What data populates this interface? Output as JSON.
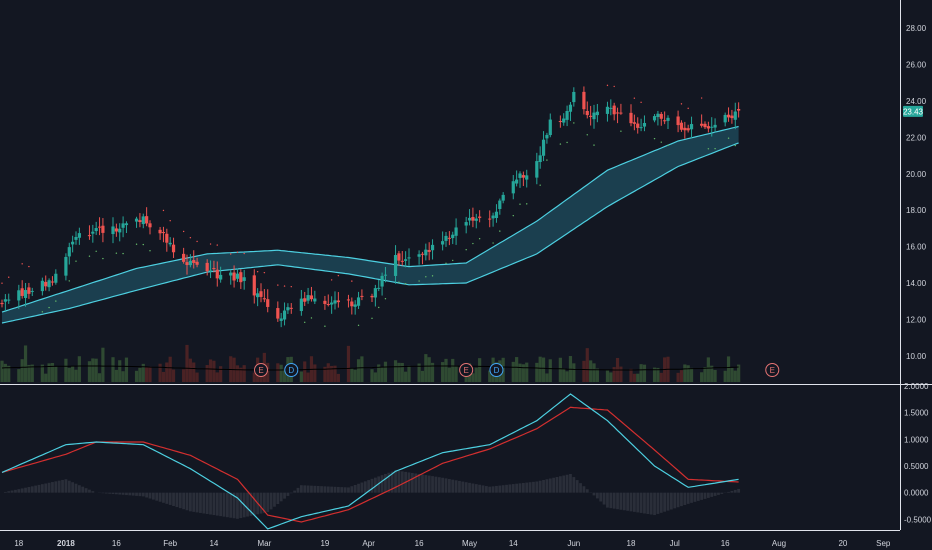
{
  "theme": {
    "background": "#131722",
    "axis_text": "#d1d4dc",
    "separator": "#e0e3eb",
    "up": "#26a69a",
    "down": "#ef5350",
    "ribbon": "#4dd0e1",
    "ribbon_fill": "#1f4e5f",
    "dots": "#66bb6a",
    "volume_up": "#2f4a32",
    "volume_down": "#4a2224",
    "volume_ma": "#000000",
    "macd": "#4dd0e1",
    "signal": "#d32f2f",
    "hist": "#2a2e39",
    "last_price_badge": "#26a69a",
    "event_earnings": "#e57373",
    "event_dividend": "#42a5f5"
  },
  "price_axis": {
    "ticks": [
      "28.00",
      "26.00",
      "24.00",
      "22.00",
      "20.00",
      "18.00",
      "16.00",
      "14.00",
      "12.00",
      "10.00"
    ],
    "last_price": "23.43",
    "range": [
      9,
      29
    ]
  },
  "oscillator_axis": {
    "ticks": [
      "2.0000",
      "1.5000",
      "1.0000",
      "0.5000",
      "0.0000",
      "-0.5000"
    ],
    "range": [
      -0.7,
      2.0
    ]
  },
  "time_axis": {
    "labels": [
      {
        "text": "18",
        "bold": false
      },
      {
        "text": "2018",
        "bold": true
      },
      {
        "text": "16",
        "bold": false
      },
      {
        "text": "Feb",
        "bold": false
      },
      {
        "text": "14",
        "bold": false
      },
      {
        "text": "Mar",
        "bold": false
      },
      {
        "text": "19",
        "bold": false
      },
      {
        "text": "Apr",
        "bold": false
      },
      {
        "text": "16",
        "bold": false
      },
      {
        "text": "May",
        "bold": false
      },
      {
        "text": "14",
        "bold": false
      },
      {
        "text": "Jun",
        "bold": false
      },
      {
        "text": "18",
        "bold": false
      },
      {
        "text": "Jul",
        "bold": false
      },
      {
        "text": "16",
        "bold": false
      },
      {
        "text": "Aug",
        "bold": false
      },
      {
        "text": "20",
        "bold": false
      },
      {
        "text": "Sep",
        "bold": false
      }
    ]
  },
  "events": [
    {
      "label": "E",
      "kind": "earnings",
      "date": "2018-02-28"
    },
    {
      "label": "D",
      "kind": "dividend",
      "date": "2018-03-09"
    },
    {
      "label": "E",
      "kind": "earnings",
      "date": "2018-04-30"
    },
    {
      "label": "D",
      "kind": "dividend",
      "date": "2018-05-09"
    },
    {
      "label": "E",
      "kind": "earnings",
      "date": "2018-07-30"
    }
  ],
  "chart_data": {
    "type": "candlestick",
    "date_range": [
      "2017-12-13",
      "2018-07-20"
    ],
    "x_axis_range": [
      "2017-12-13",
      "2018-09-03"
    ],
    "price_anchors": [
      {
        "date": "2017-12-13",
        "close": 13.0
      },
      {
        "date": "2017-12-28",
        "close": 14.2
      },
      {
        "date": "2018-01-05",
        "close": 16.7
      },
      {
        "date": "2018-01-10",
        "close": 16.8
      },
      {
        "date": "2018-01-17",
        "close": 17.1
      },
      {
        "date": "2018-01-24",
        "close": 17.6
      },
      {
        "date": "2018-01-31",
        "close": 16.4
      },
      {
        "date": "2018-02-05",
        "close": 15.2
      },
      {
        "date": "2018-02-09",
        "close": 15.0
      },
      {
        "date": "2018-02-15",
        "close": 14.5
      },
      {
        "date": "2018-02-23",
        "close": 14.2
      },
      {
        "date": "2018-03-05",
        "close": 12.0
      },
      {
        "date": "2018-03-12",
        "close": 13.2
      },
      {
        "date": "2018-03-19",
        "close": 13.0
      },
      {
        "date": "2018-03-26",
        "close": 12.9
      },
      {
        "date": "2018-04-02",
        "close": 13.3
      },
      {
        "date": "2018-04-09",
        "close": 15.3
      },
      {
        "date": "2018-04-16",
        "close": 15.6
      },
      {
        "date": "2018-04-23",
        "close": 16.3
      },
      {
        "date": "2018-04-30",
        "close": 17.3
      },
      {
        "date": "2018-05-07",
        "close": 17.5
      },
      {
        "date": "2018-05-14",
        "close": 19.6
      },
      {
        "date": "2018-05-21",
        "close": 20.5
      },
      {
        "date": "2018-05-25",
        "close": 22.8
      },
      {
        "date": "2018-05-29",
        "close": 22.9
      },
      {
        "date": "2018-06-01",
        "close": 24.5
      },
      {
        "date": "2018-06-05",
        "close": 23.1
      },
      {
        "date": "2018-06-12",
        "close": 23.5
      },
      {
        "date": "2018-06-19",
        "close": 22.6
      },
      {
        "date": "2018-06-26",
        "close": 23.2
      },
      {
        "date": "2018-07-03",
        "close": 22.4
      },
      {
        "date": "2018-07-10",
        "close": 22.6
      },
      {
        "date": "2018-07-20",
        "close": 23.43
      }
    ],
    "ribbon": [
      {
        "date": "2017-12-13",
        "upper": 12.4,
        "lower": 11.8
      },
      {
        "date": "2018-01-02",
        "upper": 13.6,
        "lower": 12.6
      },
      {
        "date": "2018-01-22",
        "upper": 14.8,
        "lower": 13.6
      },
      {
        "date": "2018-02-12",
        "upper": 15.6,
        "lower": 14.6
      },
      {
        "date": "2018-03-05",
        "upper": 15.8,
        "lower": 15.0
      },
      {
        "date": "2018-03-26",
        "upper": 15.4,
        "lower": 14.5
      },
      {
        "date": "2018-04-13",
        "upper": 14.9,
        "lower": 13.9
      },
      {
        "date": "2018-04-30",
        "upper": 15.1,
        "lower": 14.0
      },
      {
        "date": "2018-05-21",
        "upper": 17.4,
        "lower": 15.6
      },
      {
        "date": "2018-06-11",
        "upper": 20.2,
        "lower": 18.2
      },
      {
        "date": "2018-07-02",
        "upper": 21.8,
        "lower": 20.4
      },
      {
        "date": "2018-07-20",
        "upper": 22.6,
        "lower": 21.7
      }
    ],
    "macd": [
      {
        "date": "2017-12-13",
        "macd": 0.38,
        "signal": 0.38
      },
      {
        "date": "2018-01-01",
        "macd": 0.9,
        "signal": 0.72
      },
      {
        "date": "2018-01-10",
        "macd": 0.95,
        "signal": 0.95
      },
      {
        "date": "2018-01-24",
        "macd": 0.9,
        "signal": 0.95
      },
      {
        "date": "2018-02-07",
        "macd": 0.45,
        "signal": 0.7
      },
      {
        "date": "2018-02-21",
        "macd": -0.1,
        "signal": 0.25
      },
      {
        "date": "2018-03-02",
        "macd": -0.68,
        "signal": -0.42
      },
      {
        "date": "2018-03-12",
        "macd": -0.45,
        "signal": -0.55
      },
      {
        "date": "2018-03-26",
        "macd": -0.25,
        "signal": -0.32
      },
      {
        "date": "2018-04-09",
        "macd": 0.4,
        "signal": 0.1
      },
      {
        "date": "2018-04-23",
        "macd": 0.75,
        "signal": 0.55
      },
      {
        "date": "2018-05-07",
        "macd": 0.9,
        "signal": 0.82
      },
      {
        "date": "2018-05-21",
        "macd": 1.35,
        "signal": 1.2
      },
      {
        "date": "2018-05-31",
        "macd": 1.85,
        "signal": 1.6
      },
      {
        "date": "2018-06-11",
        "macd": 1.35,
        "signal": 1.55
      },
      {
        "date": "2018-06-25",
        "macd": 0.5,
        "signal": 0.8
      },
      {
        "date": "2018-07-05",
        "macd": 0.1,
        "signal": 0.25
      },
      {
        "date": "2018-07-20",
        "macd": 0.25,
        "signal": 0.2
      }
    ],
    "volume_range": [
      0,
      1
    ]
  }
}
